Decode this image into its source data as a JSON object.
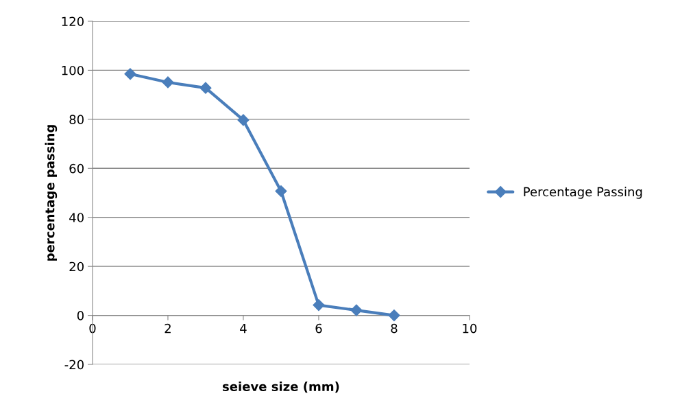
{
  "chart_data": {
    "type": "line",
    "xlabel": "seieve size (mm)",
    "ylabel": "percentage passing",
    "x": [
      1,
      2,
      3,
      4,
      5,
      6,
      7,
      8
    ],
    "series": [
      {
        "name": "Percentage Passing",
        "color": "#4a7ebb",
        "values": [
          98.5,
          95.1,
          92.8,
          79.7,
          50.7,
          4.2,
          2.1,
          0
        ]
      }
    ],
    "xlim": [
      0,
      10
    ],
    "xticks": [
      0,
      2,
      4,
      6,
      8,
      10
    ],
    "ylim": [
      -20,
      120
    ],
    "yticks": [
      -20,
      0,
      20,
      40,
      60,
      80,
      100,
      120
    ],
    "grid": "y",
    "legend": "right",
    "marker": "diamond",
    "line_style": "solid"
  }
}
